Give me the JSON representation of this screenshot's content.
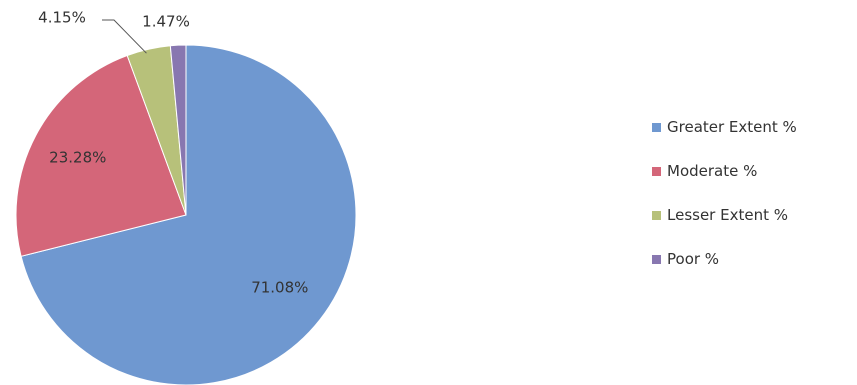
{
  "chart_data": {
    "type": "pie",
    "slices": [
      {
        "label": "Greater Extent %",
        "value": 71.08,
        "value_label": "71.08%",
        "color": "#6f98d0"
      },
      {
        "label": "Moderate %",
        "value": 23.28,
        "value_label": "23.28%",
        "color": "#d46679"
      },
      {
        "label": "Lesser Extent %",
        "value": 4.15,
        "value_label": "4.15%",
        "color": "#b7c17a"
      },
      {
        "label": "Poor %",
        "value": 1.47,
        "value_label": "1.47%",
        "color": "#8877b0"
      }
    ],
    "legend": {
      "position": "right"
    }
  }
}
